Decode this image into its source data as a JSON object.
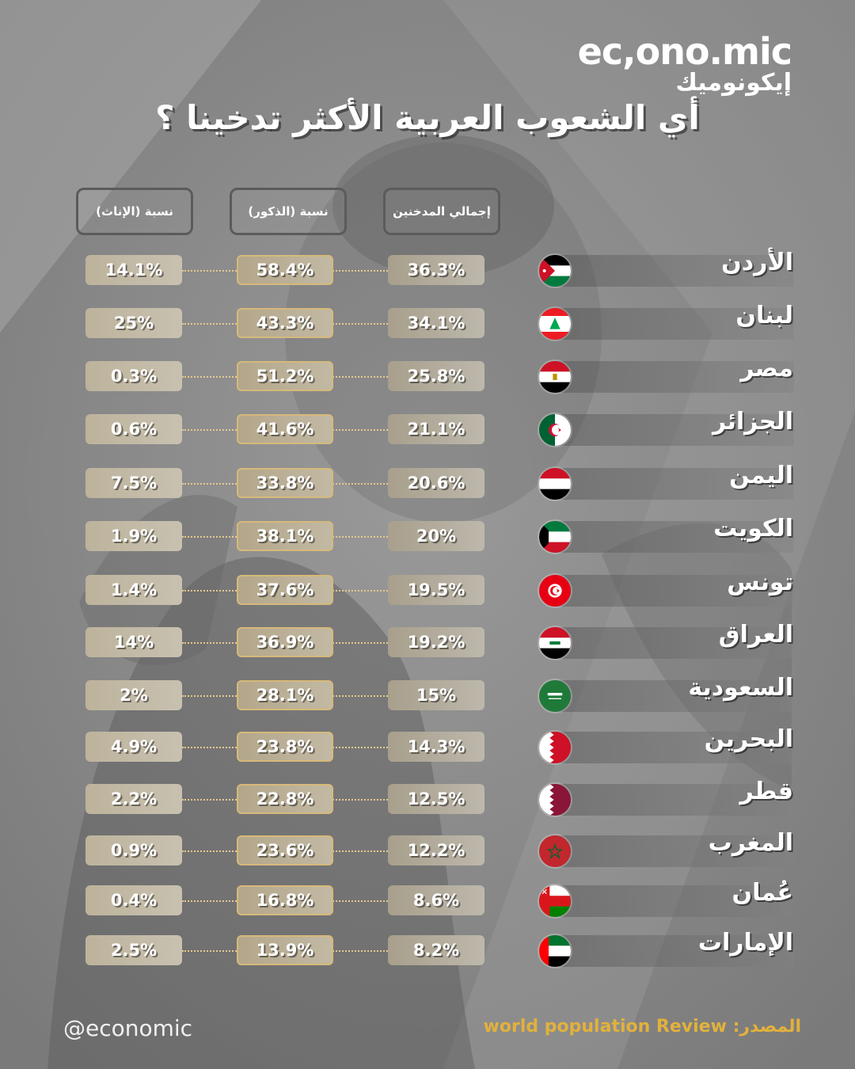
{
  "brand": {
    "name_en": "ec,ono.mic",
    "name_ar": "إيكونوميك"
  },
  "title": "أي الشعوب العربية الأكثر تدخينا ؟",
  "chart_data": {
    "type": "table",
    "columns": [
      "إجمالي المدخنين",
      "نسبة (الذكور)",
      "نسبة (الإناث)"
    ],
    "rows": [
      {
        "country": "الأردن",
        "flag": "jordan-flag-icon",
        "total": "36.3%",
        "male": "58.4%",
        "female": "14.1%"
      },
      {
        "country": "لبنان",
        "flag": "lebanon-flag-icon",
        "total": "34.1%",
        "male": "43.3%",
        "female": "25%"
      },
      {
        "country": "مصر",
        "flag": "egypt-flag-icon",
        "total": "25.8%",
        "male": "51.2%",
        "female": "0.3%"
      },
      {
        "country": "الجزائر",
        "flag": "algeria-flag-icon",
        "total": "21.1%",
        "male": "41.6%",
        "female": "0.6%"
      },
      {
        "country": "اليمن",
        "flag": "yemen-flag-icon",
        "total": "20.6%",
        "male": "33.8%",
        "female": "7.5%"
      },
      {
        "country": "الكويت",
        "flag": "kuwait-flag-icon",
        "total": "20%",
        "male": "38.1%",
        "female": "1.9%"
      },
      {
        "country": "تونس",
        "flag": "tunisia-flag-icon",
        "total": "19.5%",
        "male": "37.6%",
        "female": "1.4%"
      },
      {
        "country": "العراق",
        "flag": "iraq-flag-icon",
        "total": "19.2%",
        "male": "36.9%",
        "female": "14%"
      },
      {
        "country": "السعودية",
        "flag": "saudi-flag-icon",
        "total": "15%",
        "male": "28.1%",
        "female": "2%"
      },
      {
        "country": "البحرين",
        "flag": "bahrain-flag-icon",
        "total": "14.3%",
        "male": "23.8%",
        "female": "4.9%"
      },
      {
        "country": "قطر",
        "flag": "qatar-flag-icon",
        "total": "12.5%",
        "male": "22.8%",
        "female": "2.2%"
      },
      {
        "country": "المغرب",
        "flag": "morocco-flag-icon",
        "total": "12.2%",
        "male": "23.6%",
        "female": "0.9%"
      },
      {
        "country": "عُمان",
        "flag": "oman-flag-icon",
        "total": "8.6%",
        "male": "16.8%",
        "female": "0.4%"
      },
      {
        "country": "الإمارات",
        "flag": "uae-flag-icon",
        "total": "8.2%",
        "male": "13.9%",
        "female": "2.5%"
      }
    ]
  },
  "footer": {
    "handle": "@economic",
    "source": "المصدر: world population Review"
  },
  "colors": {
    "accent": "#e2b13c",
    "cell_border": "#d6b97a",
    "background": "#8e8e8e"
  }
}
